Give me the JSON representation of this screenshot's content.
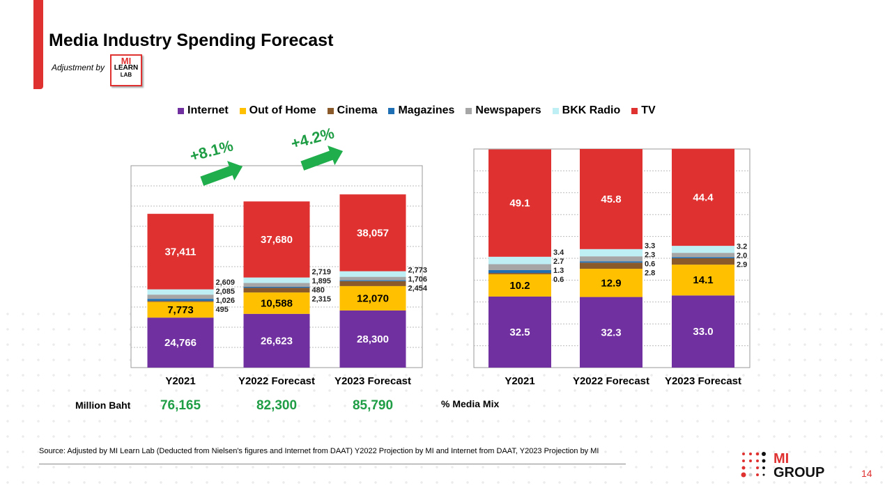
{
  "title": "Media Industry Spending Forecast",
  "adjustment_label": "Adjustment by",
  "lab_logo": {
    "line1": "MI",
    "line2": "LEARN",
    "line3": "LAB"
  },
  "legend": [
    {
      "name": "Internet",
      "color": "#7030A0"
    },
    {
      "name": "Out of Home",
      "color": "#FFC000"
    },
    {
      "name": "Cinema",
      "color": "#8B5A2B"
    },
    {
      "name": "Magazines",
      "color": "#1F6FB5"
    },
    {
      "name": "Newspapers",
      "color": "#A6A6A6"
    },
    {
      "name": "BKK Radio",
      "color": "#BDEFF5"
    },
    {
      "name": "TV",
      "color": "#E03131"
    }
  ],
  "growth": [
    "+8.1%",
    "+4.2%"
  ],
  "totals_label": "Million Baht",
  "totals": [
    "76,165",
    "82,300",
    "85,790"
  ],
  "mix_label": "% Media Mix",
  "chart_data": [
    {
      "type": "bar",
      "stacked": true,
      "categories": [
        "Y2021",
        "Y2022 Forecast",
        "Y2023 Forecast"
      ],
      "ylim": [
        0,
        100000
      ],
      "grid": true,
      "series": [
        {
          "name": "Internet",
          "values": [
            24766,
            26623,
            28300
          ]
        },
        {
          "name": "Out of Home",
          "values": [
            7773,
            10588,
            12070
          ]
        },
        {
          "name": "Cinema",
          "values": [
            495,
            2315,
            2454
          ]
        },
        {
          "name": "Magazines",
          "values": [
            1026,
            480,
            430
          ]
        },
        {
          "name": "Newspapers",
          "values": [
            2085,
            1895,
            1706
          ]
        },
        {
          "name": "BKK Radio",
          "values": [
            2609,
            2719,
            2773
          ]
        },
        {
          "name": "TV",
          "values": [
            37411,
            37680,
            38057
          ]
        }
      ],
      "labels": [
        [
          "24,766",
          "26,623",
          "28,300"
        ],
        [
          "7,773",
          "10,588",
          "12,070"
        ],
        [
          "495",
          "2,315",
          "2,454"
        ],
        [
          "1,026",
          "480",
          ""
        ],
        [
          "2,085",
          "1,895",
          "1,706"
        ],
        [
          "2,609",
          "2,719",
          "2,773"
        ],
        [
          "37,411",
          "37,680",
          "38,057"
        ]
      ]
    },
    {
      "type": "bar",
      "stacked": true,
      "categories": [
        "Y2021",
        "Y2022 Forecast",
        "Y2023 Forecast"
      ],
      "ylim": [
        0,
        100
      ],
      "grid": true,
      "series": [
        {
          "name": "Internet",
          "values": [
            32.5,
            32.3,
            33.0
          ]
        },
        {
          "name": "Out of Home",
          "values": [
            10.2,
            12.9,
            14.1
          ]
        },
        {
          "name": "Cinema",
          "values": [
            0.6,
            2.8,
            2.9
          ]
        },
        {
          "name": "Magazines",
          "values": [
            1.3,
            0.6,
            0.5
          ]
        },
        {
          "name": "Newspapers",
          "values": [
            2.7,
            2.3,
            2.0
          ]
        },
        {
          "name": "BKK Radio",
          "values": [
            3.4,
            3.3,
            3.2
          ]
        },
        {
          "name": "TV",
          "values": [
            49.1,
            45.8,
            44.4
          ]
        }
      ],
      "labels": [
        [
          "32.5",
          "32.3",
          "33.0"
        ],
        [
          "10.2",
          "12.9",
          "14.1"
        ],
        [
          "0.6",
          "2.8",
          "2.9"
        ],
        [
          "1.3",
          "0.6",
          ""
        ],
        [
          "2.7",
          "2.3",
          "2.0"
        ],
        [
          "3.4",
          "3.3",
          "3.2"
        ],
        [
          "49.1",
          "45.8",
          "44.4"
        ]
      ]
    }
  ],
  "source": "Source: Adjusted by MI Learn Lab (Deducted  from Nielsen's figures and Internet from DAAT) Y2022 Projection by MI and Internet from DAAT, Y2023 Projection by MI",
  "group_logo": {
    "line1": "MI",
    "line2": "GROUP"
  },
  "page_number": "14"
}
